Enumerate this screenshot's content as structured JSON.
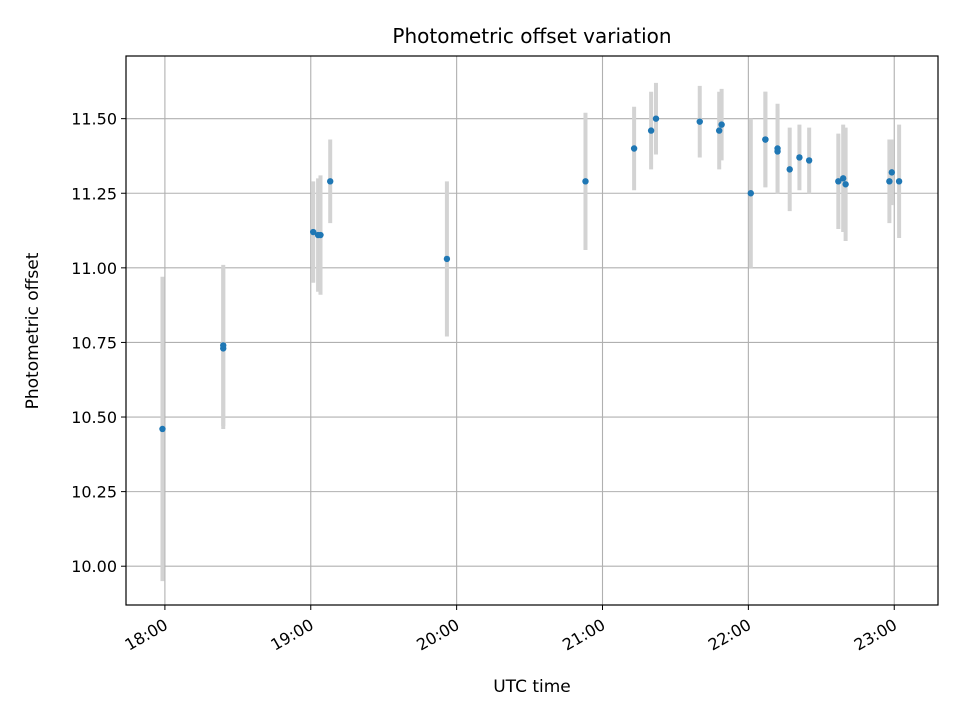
{
  "chart_data": {
    "type": "scatter",
    "title": "Photometric offset variation",
    "xlabel": "UTC time",
    "ylabel": "Photometric offset",
    "x_ticks": [
      "18:00",
      "19:00",
      "20:00",
      "21:00",
      "22:00",
      "23:00"
    ],
    "y_ticks": [
      "10.00",
      "10.25",
      "10.50",
      "10.75",
      "11.00",
      "11.25",
      "11.50"
    ],
    "xlim": [
      "17:44",
      "23:18"
    ],
    "ylim": [
      9.87,
      11.71
    ],
    "grid": true,
    "colors": {
      "point": "#1f77b4",
      "errorbar": "#d3d3d3",
      "grid": "#b0b0b0"
    },
    "points": [
      {
        "t": "17:59",
        "y": 10.46,
        "err": 0.51
      },
      {
        "t": "18:24",
        "y": 10.73,
        "err": 0.27
      },
      {
        "t": "18:24",
        "y": 10.74,
        "err": 0.27
      },
      {
        "t": "19:01",
        "y": 11.12,
        "err": 0.17
      },
      {
        "t": "19:03",
        "y": 11.11,
        "err": 0.19
      },
      {
        "t": "19:04",
        "y": 11.11,
        "err": 0.2
      },
      {
        "t": "19:08",
        "y": 11.29,
        "err": 0.14
      },
      {
        "t": "19:56",
        "y": 11.03,
        "err": 0.26
      },
      {
        "t": "20:53",
        "y": 11.29,
        "err": 0.23
      },
      {
        "t": "21:13",
        "y": 11.4,
        "err": 0.14
      },
      {
        "t": "21:20",
        "y": 11.46,
        "err": 0.13
      },
      {
        "t": "21:22",
        "y": 11.5,
        "err": 0.12
      },
      {
        "t": "21:40",
        "y": 11.49,
        "err": 0.12
      },
      {
        "t": "21:48",
        "y": 11.46,
        "err": 0.13
      },
      {
        "t": "21:49",
        "y": 11.48,
        "err": 0.12
      },
      {
        "t": "22:01",
        "y": 11.25,
        "err": 0.25
      },
      {
        "t": "22:07",
        "y": 11.43,
        "err": 0.16
      },
      {
        "t": "22:07",
        "y": 11.43,
        "err": 0.16
      },
      {
        "t": "22:12",
        "y": 11.4,
        "err": 0.15
      },
      {
        "t": "22:12",
        "y": 11.39,
        "err": 0.14
      },
      {
        "t": "22:17",
        "y": 11.33,
        "err": 0.14
      },
      {
        "t": "22:21",
        "y": 11.37,
        "err": 0.11
      },
      {
        "t": "22:25",
        "y": 11.36,
        "err": 0.11
      },
      {
        "t": "22:37",
        "y": 11.29,
        "err": 0.16
      },
      {
        "t": "22:39",
        "y": 11.3,
        "err": 0.18
      },
      {
        "t": "22:40",
        "y": 11.28,
        "err": 0.19
      },
      {
        "t": "22:58",
        "y": 11.29,
        "err": 0.14
      },
      {
        "t": "22:59",
        "y": 11.32,
        "err": 0.11
      },
      {
        "t": "23:02",
        "y": 11.29,
        "err": 0.19
      }
    ]
  }
}
